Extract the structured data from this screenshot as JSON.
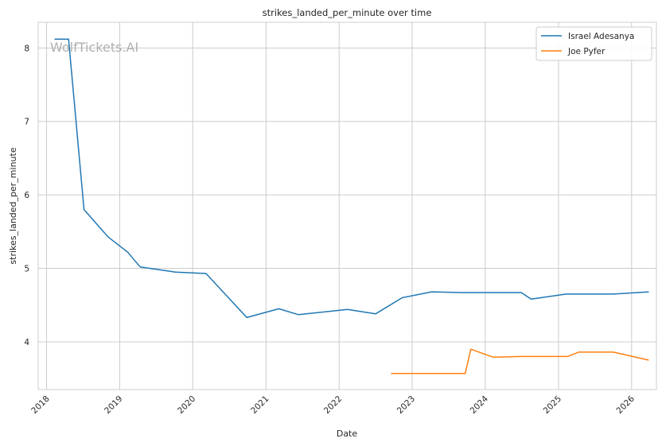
{
  "chart_data": {
    "type": "line",
    "title": "strikes_landed_per_minute over time",
    "xlabel": "Date",
    "ylabel": "strikes_landed_per_minute",
    "watermark": "WolfTickets.AI",
    "x_tick_labels": [
      "2018",
      "2019",
      "2020",
      "2021",
      "2022",
      "2023",
      "2024",
      "2025",
      "2026"
    ],
    "y_tick_labels": [
      "4",
      "5",
      "6",
      "7",
      "8"
    ],
    "xlim": [
      "2017-11-20",
      "2026-05-05"
    ],
    "ylim": [
      3.35,
      8.35
    ],
    "grid": true,
    "legend_position": "top-right",
    "series": [
      {
        "name": "Israel Adesanya",
        "color": "#1f77b4",
        "points": [
          [
            "2018-02-10",
            8.12
          ],
          [
            "2018-04-21",
            8.12
          ],
          [
            "2018-07-07",
            5.8
          ],
          [
            "2018-11-03",
            5.43
          ],
          [
            "2019-02-10",
            5.22
          ],
          [
            "2019-04-13",
            5.02
          ],
          [
            "2019-10-06",
            4.95
          ],
          [
            "2020-03-07",
            4.93
          ],
          [
            "2020-09-27",
            4.33
          ],
          [
            "2021-03-06",
            4.45
          ],
          [
            "2021-06-12",
            4.37
          ],
          [
            "2022-02-12",
            4.44
          ],
          [
            "2022-07-02",
            4.38
          ],
          [
            "2022-11-12",
            4.6
          ],
          [
            "2023-04-08",
            4.68
          ],
          [
            "2023-09-09",
            4.67
          ],
          [
            "2024-06-29",
            4.67
          ],
          [
            "2024-08-17",
            4.58
          ],
          [
            "2025-02-08",
            4.65
          ],
          [
            "2025-10-01",
            4.65
          ],
          [
            "2026-03-28",
            4.68
          ]
        ]
      },
      {
        "name": "Joe Pyfer",
        "color": "#ff7f0e",
        "points": [
          [
            "2022-09-17",
            3.57
          ],
          [
            "2023-09-23",
            3.57
          ],
          [
            "2023-10-21",
            3.9
          ],
          [
            "2024-02-10",
            3.79
          ],
          [
            "2024-06-29",
            3.8
          ],
          [
            "2025-02-15",
            3.8
          ],
          [
            "2025-04-12",
            3.86
          ],
          [
            "2025-10-01",
            3.86
          ],
          [
            "2026-03-28",
            3.75
          ]
        ]
      }
    ]
  }
}
